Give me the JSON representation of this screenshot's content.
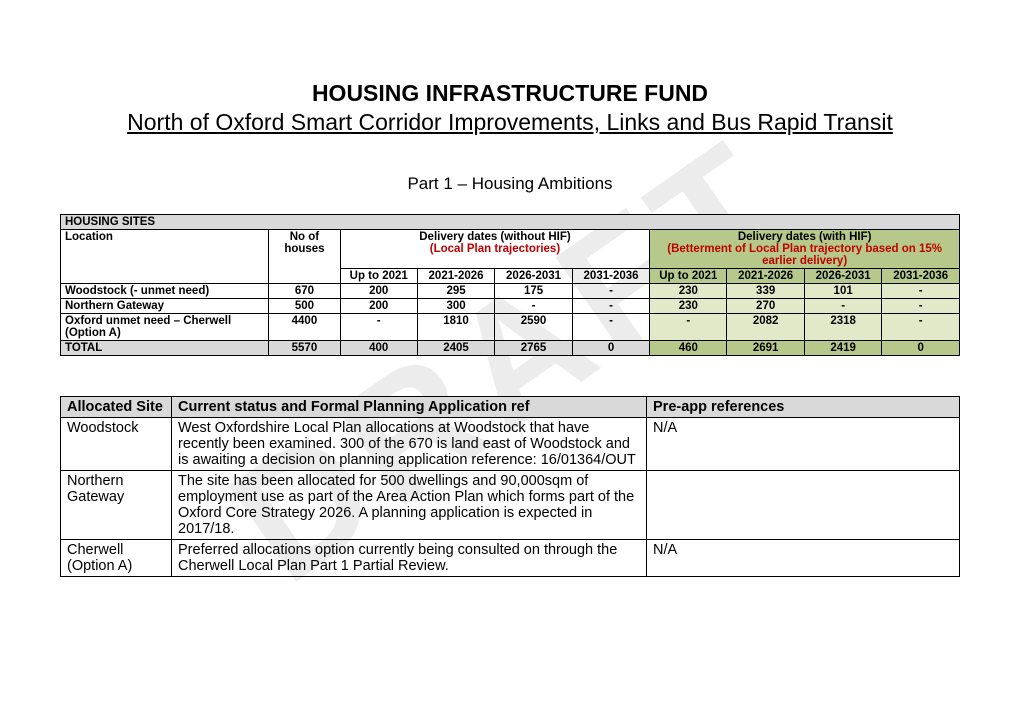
{
  "watermark": "DRAFT",
  "title": "HOUSING INFRASTRUCTURE FUND",
  "subtitle": "North of Oxford Smart Corridor Improvements, Links and Bus Rapid Transit",
  "part_label": "Part 1 – Housing Ambitions",
  "table1": {
    "banner": "HOUSING SITES",
    "headers": {
      "location": "Location",
      "no_houses": "No of houses",
      "delivery_without": "Delivery dates (without HIF)",
      "delivery_without_sub": "(Local Plan trajectories)",
      "delivery_with": "Delivery dates (with HIF)",
      "delivery_with_sub": "(Betterment of Local Plan trajectory based on 15% earlier delivery)",
      "periods": [
        "Up to 2021",
        "2021-2026",
        "2026-2031",
        "2031-2036"
      ]
    },
    "rows": [
      {
        "location": "Woodstock (- unmet need)",
        "houses": "670",
        "without": [
          "200",
          "295",
          "175",
          "-"
        ],
        "with": [
          "230",
          "339",
          "101",
          "-"
        ]
      },
      {
        "location": "Northern Gateway",
        "houses": "500",
        "without": [
          "200",
          "300",
          "-",
          "-"
        ],
        "with": [
          "230",
          "270",
          "-",
          "-"
        ]
      },
      {
        "location": "Oxford unmet need – Cherwell (Option A)",
        "houses": "4400",
        "without": [
          "-",
          "1810",
          "2590",
          "-"
        ],
        "with": [
          "-",
          "2082",
          "2318",
          "-"
        ]
      }
    ],
    "total": {
      "label": "TOTAL",
      "houses": "5570",
      "without": [
        "400",
        "2405",
        "2765",
        "0"
      ],
      "with": [
        "460",
        "2691",
        "2419",
        "0"
      ]
    }
  },
  "table2": {
    "headers": {
      "site": "Allocated Site",
      "status": "Current  status and Formal Planning Application ref",
      "preapp": "Pre-app references"
    },
    "rows": [
      {
        "site": "Woodstock",
        "status": "West Oxfordshire Local Plan allocations at Woodstock that have recently been examined. 300 of the 670 is land east of Woodstock and is awaiting a decision on planning application reference: 16/01364/OUT",
        "preapp": "N/A"
      },
      {
        "site": "Northern Gateway",
        "status": "The site has been allocated for 500 dwellings and 90,000sqm of employment use as part of the Area Action Plan which forms part of the Oxford Core Strategy 2026. A planning application is expected in 2017/18.",
        "preapp": ""
      },
      {
        "site": "Cherwell (Option A)",
        "status": "Preferred allocations option currently being consulted on through the Cherwell Local Plan Part 1 Partial Review.",
        "preapp": "N/A"
      }
    ]
  },
  "colors": {
    "grey": "#d9d9d9",
    "light_green": "#e1e9c9",
    "dark_green": "#b7c98a",
    "red": "#c00000"
  }
}
